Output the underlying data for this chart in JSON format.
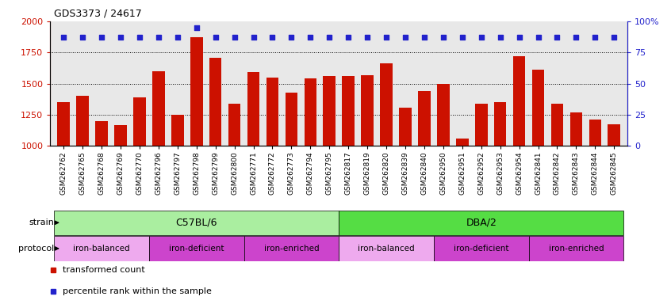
{
  "title": "GDS3373 / 24617",
  "samples": [
    "GSM262762",
    "GSM262765",
    "GSM262768",
    "GSM262769",
    "GSM262770",
    "GSM262796",
    "GSM262797",
    "GSM262798",
    "GSM262799",
    "GSM262800",
    "GSM262771",
    "GSM262772",
    "GSM262773",
    "GSM262794",
    "GSM262795",
    "GSM262817",
    "GSM262819",
    "GSM262820",
    "GSM262839",
    "GSM262840",
    "GSM262950",
    "GSM262951",
    "GSM262952",
    "GSM262953",
    "GSM262954",
    "GSM262841",
    "GSM262842",
    "GSM262843",
    "GSM262844",
    "GSM262845"
  ],
  "bar_values": [
    1350,
    1400,
    1200,
    1170,
    1390,
    1600,
    1250,
    1870,
    1710,
    1340,
    1590,
    1550,
    1430,
    1540,
    1560,
    1560,
    1570,
    1660,
    1310,
    1440,
    1500,
    1060,
    1340,
    1350,
    1720,
    1610,
    1340,
    1270,
    1210,
    1175
  ],
  "percentile_values": [
    87,
    87,
    87,
    87,
    87,
    87,
    87,
    95,
    87,
    87,
    87,
    87,
    87,
    87,
    87,
    87,
    87,
    87,
    87,
    87,
    87,
    87,
    87,
    87,
    87,
    87,
    87,
    87,
    87,
    87
  ],
  "bar_color": "#cc1100",
  "dot_color": "#2222cc",
  "ylim_left": [
    1000,
    2000
  ],
  "ylim_right": [
    0,
    100
  ],
  "yticks_left": [
    1000,
    1250,
    1500,
    1750,
    2000
  ],
  "yticks_right": [
    0,
    25,
    50,
    75,
    100
  ],
  "strain_groups": [
    {
      "label": "C57BL/6",
      "start": 0,
      "end": 15,
      "color": "#aaeea0"
    },
    {
      "label": "DBA/2",
      "start": 15,
      "end": 30,
      "color": "#55dd44"
    }
  ],
  "protocol_groups": [
    {
      "label": "iron-balanced",
      "start": 0,
      "end": 5,
      "color": "#eeaaee"
    },
    {
      "label": "iron-deficient",
      "start": 5,
      "end": 10,
      "color": "#cc44cc"
    },
    {
      "label": "iron-enriched",
      "start": 10,
      "end": 15,
      "color": "#cc44cc"
    },
    {
      "label": "iron-balanced",
      "start": 15,
      "end": 20,
      "color": "#eeaaee"
    },
    {
      "label": "iron-deficient",
      "start": 20,
      "end": 25,
      "color": "#cc44cc"
    },
    {
      "label": "iron-enriched",
      "start": 25,
      "end": 30,
      "color": "#cc44cc"
    }
  ],
  "legend_items": [
    {
      "label": "transformed count",
      "color": "#cc1100"
    },
    {
      "label": "percentile rank within the sample",
      "color": "#2222cc"
    }
  ],
  "bg_color": "#e8e8e8",
  "plot_bg": "#ffffff"
}
